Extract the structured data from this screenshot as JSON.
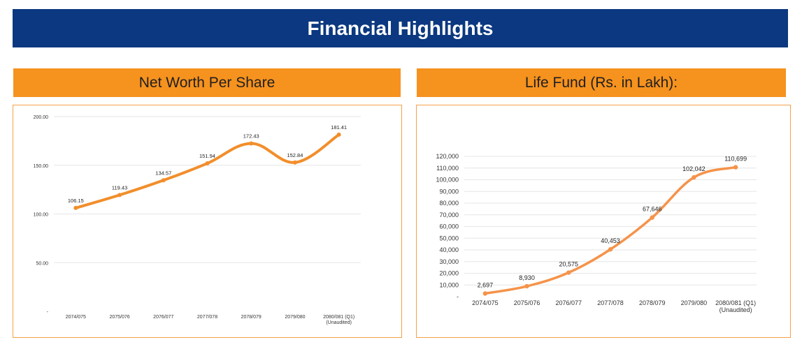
{
  "banner": {
    "title": "Financial Highlights"
  },
  "left_panel": {
    "heading": "Net Worth Per Share"
  },
  "right_panel": {
    "heading": "Life Fund (Rs. in Lakh):"
  },
  "chart_data": [
    {
      "type": "line",
      "title": "Net Worth Per Share",
      "categories": [
        "2074/075",
        "2075/076",
        "2076/077",
        "2077/078",
        "2078/079",
        "2079/080",
        "2080/081 (Q1)\n(Unaudited)"
      ],
      "values": [
        106.15,
        119.43,
        134.57,
        151.94,
        172.43,
        152.84,
        181.41
      ],
      "data_labels": [
        "106.15",
        "119.43",
        "134.57",
        "151.94",
        "172.43",
        "152.84",
        "181.41"
      ],
      "y_ticks": [
        "-",
        "50.00",
        "100.00",
        "150.00",
        "200.00"
      ],
      "ylim": [
        0,
        200
      ],
      "smooth": true,
      "grid": true,
      "color": "#f28e2b"
    },
    {
      "type": "line",
      "title": "Life Fund (Rs. in Lakh):",
      "categories": [
        "2074/075",
        "2075/076",
        "2076/077",
        "2077/078",
        "2078/079",
        "2079/080",
        "2080/081 (Q1)\n(Unaudited)"
      ],
      "values": [
        2697,
        8930,
        20575,
        40453,
        67646,
        102042,
        110699
      ],
      "data_labels": [
        "2,697",
        "8,930",
        "20,575",
        "40,453",
        "67,646",
        "102,042",
        "110,699"
      ],
      "y_ticks": [
        "-",
        "10,000",
        "20,000",
        "30,000",
        "40,000",
        "50,000",
        "60,000",
        "70,000",
        "80,000",
        "90,000",
        "100,000",
        "110,000",
        "120,000"
      ],
      "ylim": [
        0,
        120000
      ],
      "smooth": true,
      "grid": true,
      "color": "#f5934a"
    }
  ]
}
